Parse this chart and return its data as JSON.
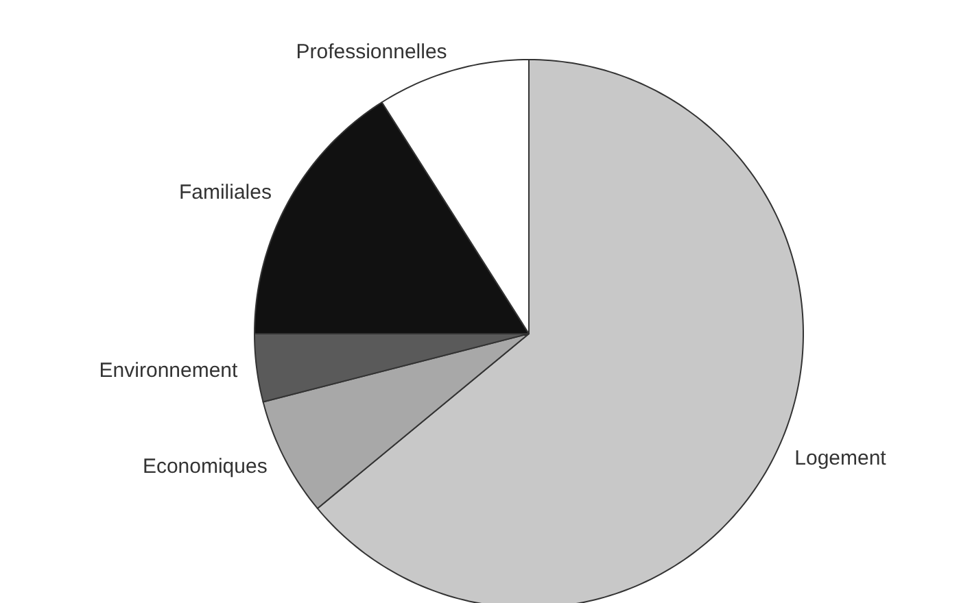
{
  "chart_data": {
    "type": "pie",
    "categories": [
      "Logement",
      "Economiques",
      "Environnement",
      "Familiales",
      "Professionnelles"
    ],
    "values": [
      64,
      7,
      4,
      16,
      9
    ],
    "colors": [
      "#c8c8c8",
      "#a8a8a8",
      "#5a5a5a",
      "#111111",
      "#ffffff"
    ]
  }
}
